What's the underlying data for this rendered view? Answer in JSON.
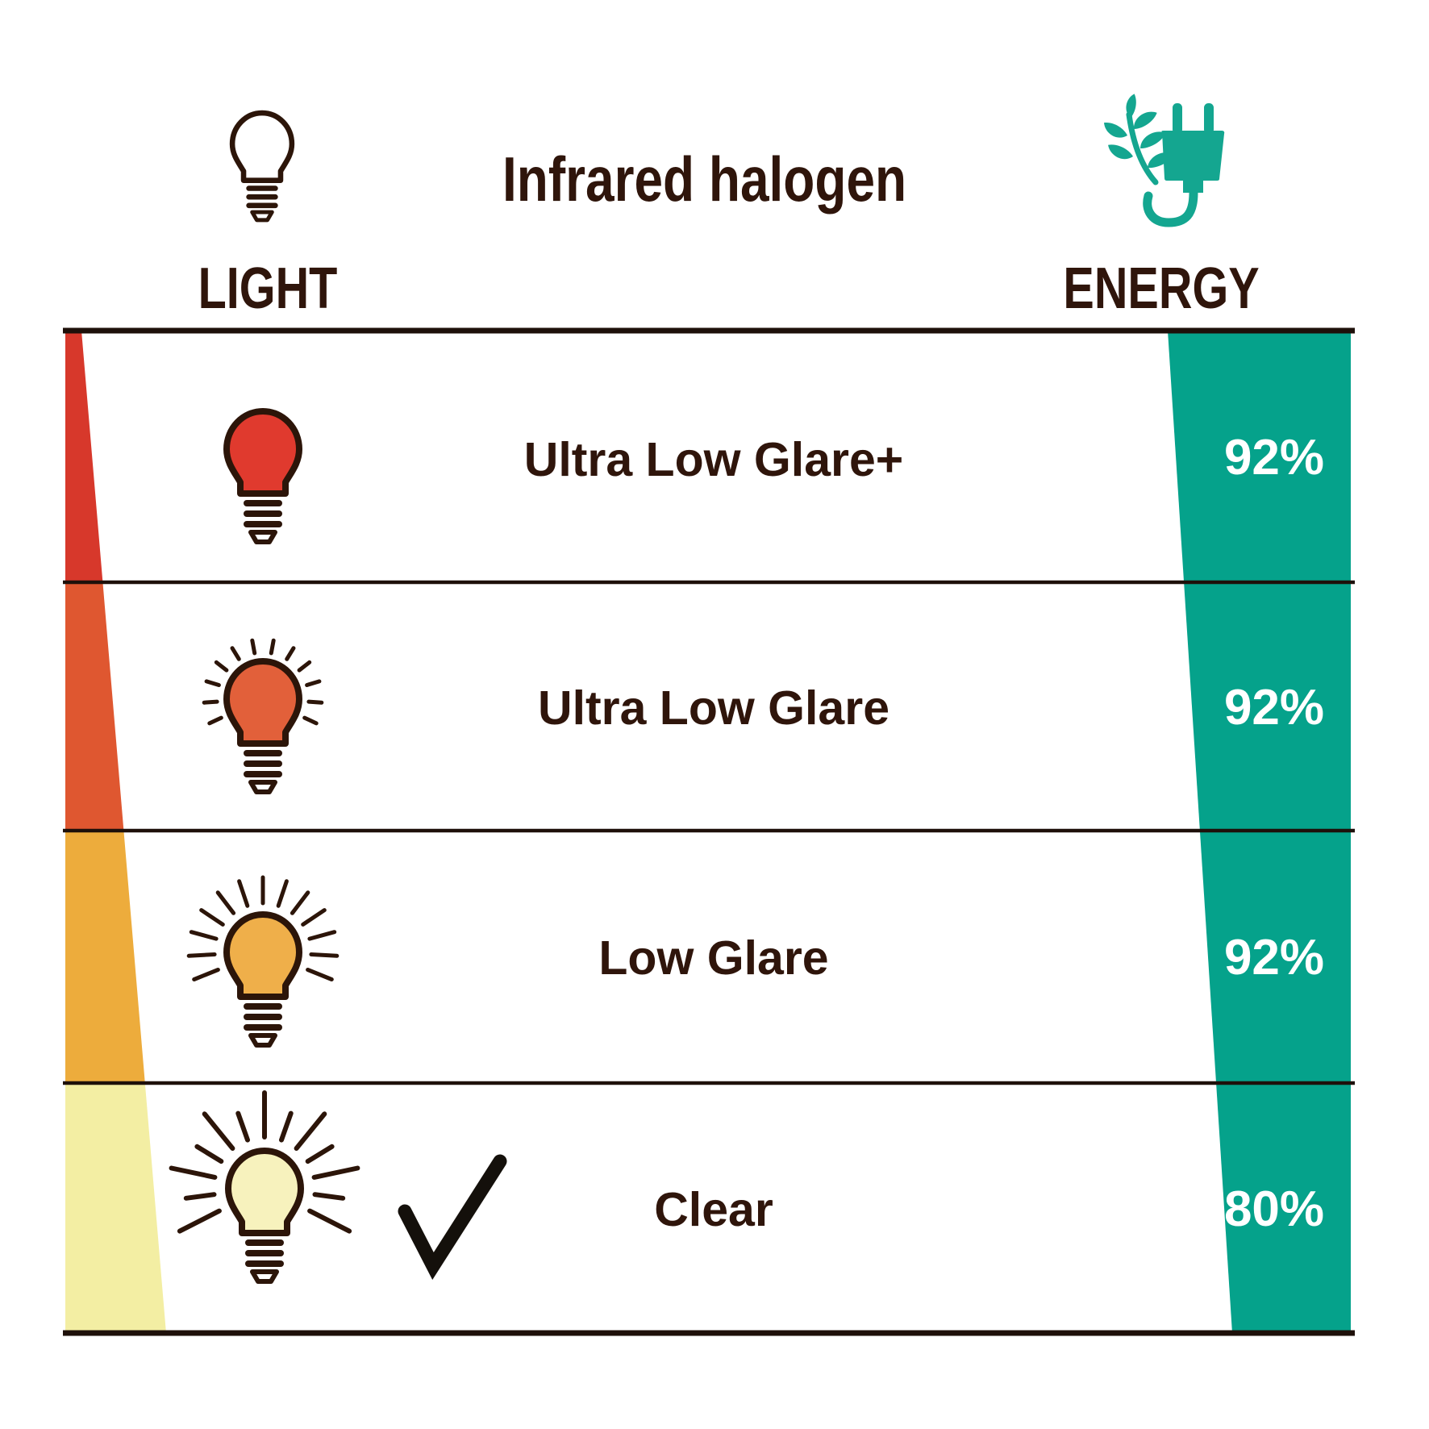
{
  "title": "Infrared halogen",
  "columns": {
    "light": "LIGHT",
    "energy": "ENERGY"
  },
  "icons": {
    "light_header": "light-bulb-outline-icon",
    "energy_header": "eco-leaf-plug-icon",
    "selected_row_marker": "checkmark-icon"
  },
  "colors": {
    "background": "#ffffff",
    "text_dark": "#2f150b",
    "line": "#1e100a",
    "bulb_outline": "#2c1509",
    "percent_text": "#ffffff",
    "energy_wedge": "#05a28b",
    "energy_icon": "#14a690",
    "checkmark": "#14100b"
  },
  "chart_data": {
    "type": "table",
    "title": "Infrared halogen",
    "columns": [
      "LIGHT",
      "ENERGY"
    ],
    "rows": [
      {
        "light": "Ultra Low Glare+",
        "energy": "92%",
        "selected": false,
        "bulb_color": "#e03a2e",
        "bulb_rays": "none"
      },
      {
        "light": "Ultra Low Glare",
        "energy": "92%",
        "selected": false,
        "bulb_color": "#e2603a",
        "bulb_rays": "short"
      },
      {
        "light": "Low Glare",
        "energy": "92%",
        "selected": false,
        "bulb_color": "#efaf4a",
        "bulb_rays": "medium"
      },
      {
        "light": "Clear",
        "energy": "80%",
        "selected": true,
        "bulb_color": "#f7f2bd",
        "bulb_rays": "long"
      }
    ],
    "light_wedge_colors": [
      "#d7382b",
      "#df5730",
      "#edac3c",
      "#f3eea3"
    ]
  }
}
